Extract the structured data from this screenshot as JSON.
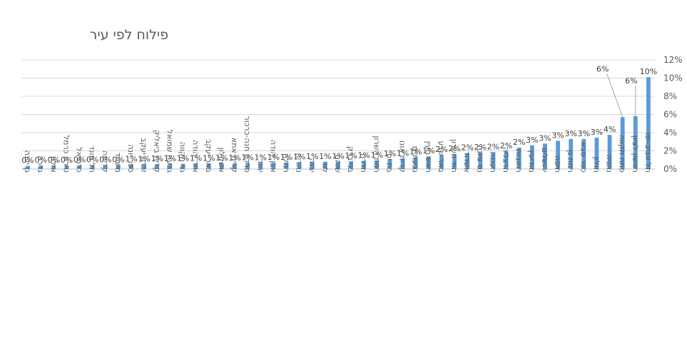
{
  "chart_data": {
    "type": "bar",
    "title": "פילוח לפי עיר",
    "ylim": [
      0,
      12
    ],
    "yticks": [
      "0%",
      "2%",
      "4%",
      "6%",
      "8%",
      "10%",
      "12%"
    ],
    "grid": true,
    "bar_color": "#5B9BD5",
    "categories": [
      "גן יבנה",
      "גדרה",
      "אילת",
      "טירת כרמל",
      "כרמיאל",
      "תל מונד",
      "קדימה",
      "משהד",
      "כפר יונה",
      "זכרון יעקב",
      "קרית ביאליק",
      "גבעת שמואל",
      "גני תקווה",
      "אור יהודה",
      "באר יעקב",
      "אשקלון",
      "קרית אתא",
      "פרדס חנה-כרכור",
      "יהוד",
      "אבן יהודה",
      "רמלה",
      "נהריה",
      "יבנה",
      "לוד",
      "שוהם",
      "בני ברק",
      "חדרה",
      "רמת השרון",
      "בת ים",
      "קרית אונו",
      "גבעתיים",
      "ראש העין",
      "באר שבע",
      "הוד השרון",
      "אשדוד",
      "נס ציונה",
      "רעננה",
      "הרצליה",
      "רחובות",
      "מודיעין",
      "ירושלים",
      "חיפה",
      "רמת גן",
      "כפר סבא",
      "חולון",
      "נתניה",
      "פתח תקווה",
      "ראשון לציון",
      "תל אביב-יפו"
    ],
    "values": [
      0.35,
      0.38,
      0.4,
      0.4,
      0.42,
      0.42,
      0.43,
      0.45,
      0.5,
      0.52,
      0.54,
      0.55,
      0.57,
      0.6,
      0.6,
      0.62,
      0.64,
      0.66,
      0.68,
      0.7,
      0.72,
      0.74,
      0.78,
      0.8,
      0.82,
      0.86,
      0.9,
      0.95,
      1.1,
      1.15,
      1.3,
      1.4,
      1.55,
      1.65,
      1.75,
      1.8,
      1.85,
      1.95,
      2.35,
      2.6,
      2.8,
      3.1,
      3.3,
      3.3,
      3.45,
      3.75,
      5.7,
      5.8,
      10.1
    ],
    "data_labels": [
      "0%",
      "0%",
      "0%",
      "0%",
      "0%",
      "0%",
      "0%",
      "0%",
      "1%",
      "1%",
      "1%",
      "1%",
      "1%",
      "1%",
      "1%",
      "1%",
      "1%",
      "1%",
      "1%",
      "1%",
      "1%",
      "1%",
      "1%",
      "1%",
      "1%",
      "1%",
      "1%",
      "1%",
      "1%",
      "1%",
      "1%",
      "1%",
      "2%",
      "2%",
      "2%",
      "2%",
      "2%",
      "2%",
      "2%",
      "3%",
      "3%",
      "3%",
      "3%",
      "3%",
      "3%",
      "4%",
      "6%",
      "6%",
      "10%"
    ]
  }
}
